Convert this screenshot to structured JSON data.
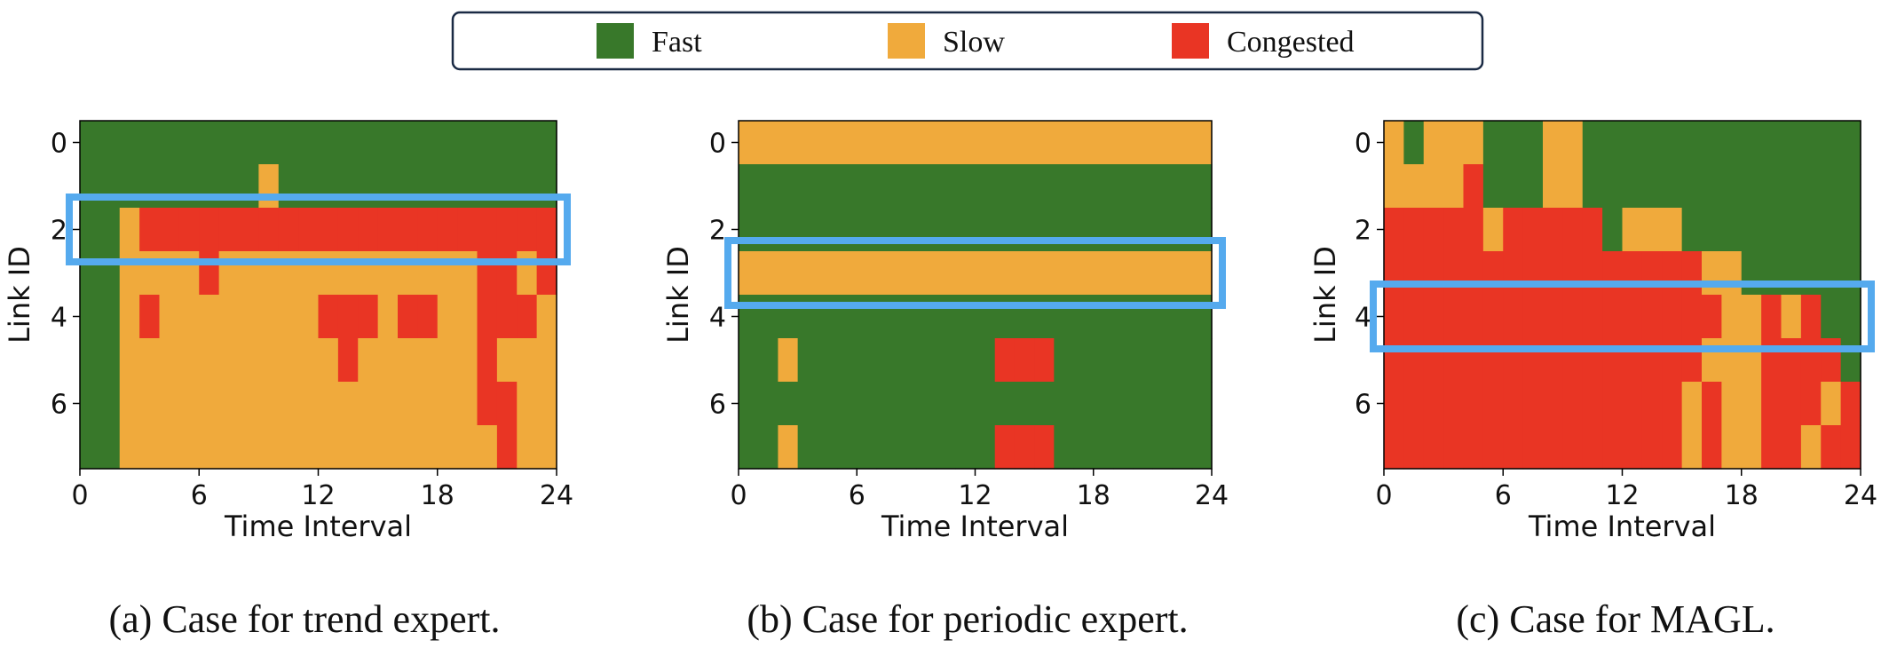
{
  "legend": {
    "items": [
      {
        "label": "Fast",
        "color": "#38782a"
      },
      {
        "label": "Slow",
        "color": "#f0aa3c"
      },
      {
        "label": "Congested",
        "color": "#e93524"
      }
    ]
  },
  "highlight_color": "#55aaee",
  "chart_data": [
    {
      "type": "heatmap",
      "caption": "(a) Case for trend expert.",
      "xlabel": "Time Interval",
      "ylabel": "Link ID",
      "xticks": [
        0,
        6,
        12,
        18,
        24
      ],
      "yticks": [
        0,
        2,
        4,
        6
      ],
      "xlim": [
        0,
        24
      ],
      "ylim": [
        7.5,
        -0.5
      ],
      "category_codes": {
        "0": "Fast",
        "1": "Slow",
        "2": "Congested"
      },
      "highlight_rows": [
        2
      ],
      "grid": [
        [
          0,
          0,
          0,
          0,
          0,
          0,
          0,
          0,
          0,
          0,
          0,
          0,
          0,
          0,
          0,
          0,
          0,
          0,
          0,
          0,
          0,
          0,
          0,
          0
        ],
        [
          0,
          0,
          0,
          0,
          0,
          0,
          0,
          0,
          0,
          1,
          0,
          0,
          0,
          0,
          0,
          0,
          0,
          0,
          0,
          0,
          0,
          0,
          0,
          0
        ],
        [
          0,
          0,
          1,
          2,
          2,
          2,
          2,
          2,
          2,
          2,
          2,
          2,
          2,
          2,
          2,
          2,
          2,
          2,
          2,
          2,
          2,
          2,
          2,
          2
        ],
        [
          0,
          0,
          1,
          1,
          1,
          1,
          2,
          1,
          1,
          1,
          1,
          1,
          1,
          1,
          1,
          1,
          1,
          1,
          1,
          1,
          2,
          2,
          1,
          2
        ],
        [
          0,
          0,
          1,
          2,
          1,
          1,
          1,
          1,
          1,
          1,
          1,
          1,
          2,
          2,
          2,
          1,
          2,
          2,
          1,
          1,
          2,
          2,
          2,
          1
        ],
        [
          0,
          0,
          1,
          1,
          1,
          1,
          1,
          1,
          1,
          1,
          1,
          1,
          1,
          2,
          1,
          1,
          1,
          1,
          1,
          1,
          2,
          1,
          1,
          1
        ],
        [
          0,
          0,
          1,
          1,
          1,
          1,
          1,
          1,
          1,
          1,
          1,
          1,
          1,
          1,
          1,
          1,
          1,
          1,
          1,
          1,
          2,
          2,
          1,
          1
        ],
        [
          0,
          0,
          1,
          1,
          1,
          1,
          1,
          1,
          1,
          1,
          1,
          1,
          1,
          1,
          1,
          1,
          1,
          1,
          1,
          1,
          1,
          2,
          1,
          1
        ]
      ]
    },
    {
      "type": "heatmap",
      "caption": "(b) Case for periodic expert.",
      "xlabel": "Time Interval",
      "ylabel": "Link ID",
      "xticks": [
        0,
        6,
        12,
        18,
        24
      ],
      "yticks": [
        0,
        2,
        4,
        6
      ],
      "xlim": [
        0,
        24
      ],
      "ylim": [
        7.5,
        -0.5
      ],
      "category_codes": {
        "0": "Fast",
        "1": "Slow",
        "2": "Congested"
      },
      "highlight_rows": [
        3
      ],
      "grid": [
        [
          1,
          1,
          1,
          1,
          1,
          1,
          1,
          1,
          1,
          1,
          1,
          1,
          1,
          1,
          1,
          1,
          1,
          1,
          1,
          1,
          1,
          1,
          1,
          1
        ],
        [
          0,
          0,
          0,
          0,
          0,
          0,
          0,
          0,
          0,
          0,
          0,
          0,
          0,
          0,
          0,
          0,
          0,
          0,
          0,
          0,
          0,
          0,
          0,
          0
        ],
        [
          0,
          0,
          0,
          0,
          0,
          0,
          0,
          0,
          0,
          0,
          0,
          0,
          0,
          0,
          0,
          0,
          0,
          0,
          0,
          0,
          0,
          0,
          0,
          0
        ],
        [
          1,
          1,
          1,
          1,
          1,
          1,
          1,
          1,
          1,
          1,
          1,
          1,
          1,
          1,
          1,
          1,
          1,
          1,
          1,
          1,
          1,
          1,
          1,
          1
        ],
        [
          0,
          0,
          0,
          0,
          0,
          0,
          0,
          0,
          0,
          0,
          0,
          0,
          0,
          0,
          0,
          0,
          0,
          0,
          0,
          0,
          0,
          0,
          0,
          0
        ],
        [
          0,
          0,
          1,
          0,
          0,
          0,
          0,
          0,
          0,
          0,
          0,
          0,
          0,
          2,
          2,
          2,
          0,
          0,
          0,
          0,
          0,
          0,
          0,
          0
        ],
        [
          0,
          0,
          0,
          0,
          0,
          0,
          0,
          0,
          0,
          0,
          0,
          0,
          0,
          0,
          0,
          0,
          0,
          0,
          0,
          0,
          0,
          0,
          0,
          0
        ],
        [
          0,
          0,
          1,
          0,
          0,
          0,
          0,
          0,
          0,
          0,
          0,
          0,
          0,
          2,
          2,
          2,
          0,
          0,
          0,
          0,
          0,
          0,
          0,
          0
        ]
      ]
    },
    {
      "type": "heatmap",
      "caption": "(c) Case for MAGL.",
      "xlabel": "Time Interval",
      "ylabel": "Link ID",
      "xticks": [
        0,
        6,
        12,
        18,
        24
      ],
      "yticks": [
        0,
        2,
        4,
        6
      ],
      "xlim": [
        0,
        24
      ],
      "ylim": [
        7.5,
        -0.5
      ],
      "category_codes": {
        "0": "Fast",
        "1": "Slow",
        "2": "Congested"
      },
      "highlight_rows": [
        4
      ],
      "grid": [
        [
          1,
          0,
          1,
          1,
          1,
          0,
          0,
          0,
          1,
          1,
          0,
          0,
          0,
          0,
          0,
          0,
          0,
          0,
          0,
          0,
          0,
          0,
          0,
          0
        ],
        [
          1,
          1,
          1,
          1,
          2,
          0,
          0,
          0,
          1,
          1,
          0,
          0,
          0,
          0,
          0,
          0,
          0,
          0,
          0,
          0,
          0,
          0,
          0,
          0
        ],
        [
          2,
          2,
          2,
          2,
          2,
          1,
          2,
          2,
          2,
          2,
          2,
          0,
          1,
          1,
          1,
          0,
          0,
          0,
          0,
          0,
          0,
          0,
          0,
          0
        ],
        [
          2,
          2,
          2,
          2,
          2,
          2,
          2,
          2,
          2,
          2,
          2,
          2,
          2,
          2,
          2,
          2,
          1,
          1,
          0,
          0,
          0,
          0,
          0,
          0
        ],
        [
          2,
          2,
          2,
          2,
          2,
          2,
          2,
          2,
          2,
          2,
          2,
          2,
          2,
          2,
          2,
          2,
          2,
          1,
          1,
          2,
          1,
          2,
          0,
          0
        ],
        [
          2,
          2,
          2,
          2,
          2,
          2,
          2,
          2,
          2,
          2,
          2,
          2,
          2,
          2,
          2,
          2,
          1,
          1,
          1,
          2,
          2,
          2,
          2,
          0
        ],
        [
          2,
          2,
          2,
          2,
          2,
          2,
          2,
          2,
          2,
          2,
          2,
          2,
          2,
          2,
          2,
          1,
          2,
          1,
          1,
          2,
          2,
          2,
          1,
          2
        ],
        [
          2,
          2,
          2,
          2,
          2,
          2,
          2,
          2,
          2,
          2,
          2,
          2,
          2,
          2,
          2,
          1,
          2,
          1,
          1,
          2,
          2,
          1,
          2,
          2
        ]
      ]
    }
  ]
}
